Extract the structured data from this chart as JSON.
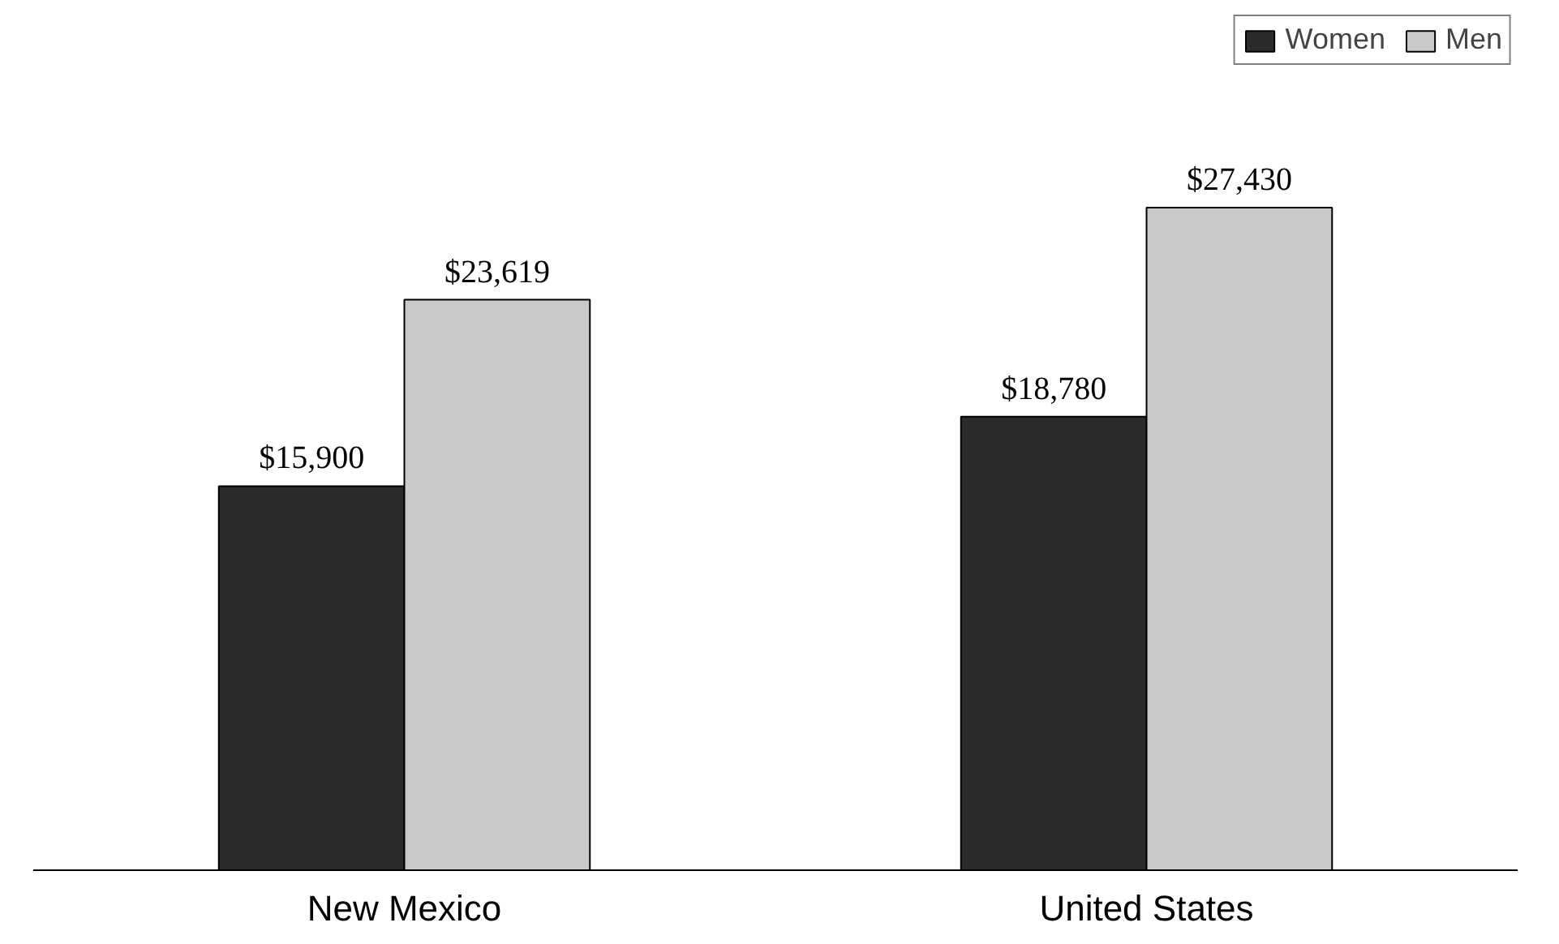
{
  "chart_data": {
    "type": "bar",
    "categories": [
      "New Mexico",
      "United States"
    ],
    "series": [
      {
        "name": "Women",
        "color": "#2b2b2b",
        "values": [
          15900,
          18780
        ],
        "value_labels": [
          "$15,900",
          "$18,780"
        ]
      },
      {
        "name": "Men",
        "color": "#c9c9c9",
        "values": [
          23619,
          27430
        ],
        "value_labels": [
          "$23,619",
          "$27,430"
        ]
      }
    ],
    "legend": "top right",
    "grid": false
  }
}
